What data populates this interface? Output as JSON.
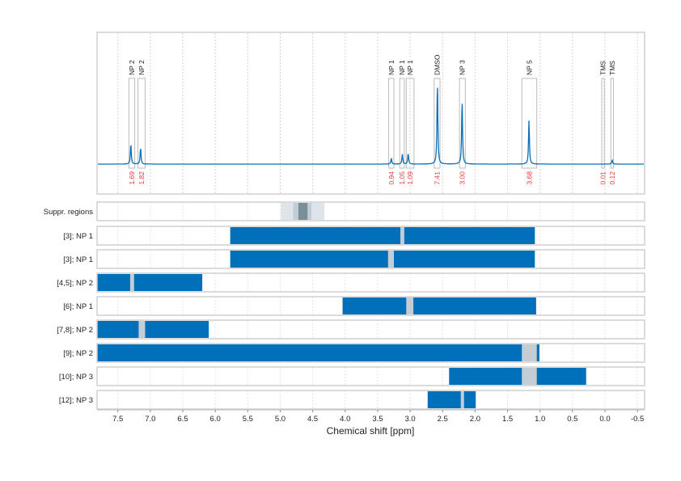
{
  "chart_data": {
    "type": "line",
    "xlabel": "Chemical shift [ppm]",
    "xlim": [
      7.82,
      -0.61
    ],
    "x_reversed": true,
    "x_ticks": [
      7.5,
      7.0,
      6.5,
      6.0,
      5.5,
      5.0,
      4.5,
      4.0,
      3.5,
      3.0,
      2.5,
      2.0,
      1.5,
      1.0,
      0.5,
      0.0,
      -0.5
    ],
    "x_tick_labels": [
      "7.5",
      "7.0",
      "6.5",
      "6.0",
      "5.5",
      "5.0",
      "4.5",
      "4.0",
      "3.5",
      "3.0",
      "2.5",
      "2.0",
      "1.5",
      "1.0",
      "0.5",
      "0.0",
      "-0.5"
    ],
    "grid": true,
    "colors": {
      "spectrum": "#0a6fb8",
      "region": "#0070bb",
      "gap": "#c3cdd3",
      "integral": "#e8383d",
      "box": "#bbbbbb"
    },
    "peaks": [
      {
        "label": "NP 2",
        "integral": "1.69",
        "range": [
          7.33,
          7.24
        ],
        "ppm": 7.3,
        "intensity": 0.25
      },
      {
        "label": "NP 2",
        "integral": "1.82",
        "range": [
          7.19,
          7.08
        ],
        "ppm": 7.15,
        "intensity": 0.2
      },
      {
        "label": "NP 1",
        "integral": "0.94",
        "range": [
          3.33,
          3.25
        ],
        "ppm": 3.29,
        "intensity": 0.07
      },
      {
        "label": "NP 1",
        "integral": "1.05",
        "range": [
          3.16,
          3.09
        ],
        "ppm": 3.12,
        "intensity": 0.12
      },
      {
        "label": "NP 1",
        "integral": "1.09",
        "range": [
          3.06,
          2.94
        ],
        "ppm": 3.03,
        "intensity": 0.13
      },
      {
        "label": "DMSO",
        "integral": "7.41",
        "range": [
          2.63,
          2.54
        ],
        "ppm": 2.58,
        "intensity": 1.0
      },
      {
        "label": "NP 3",
        "integral": "3.00",
        "range": [
          2.24,
          2.15
        ],
        "ppm": 2.2,
        "intensity": 0.78
      },
      {
        "label": "NP 5",
        "integral": "3.68",
        "range": [
          1.28,
          1.05
        ],
        "ppm": 1.17,
        "intensity": 0.53
      },
      {
        "label": "TMS",
        "integral": "0.01",
        "range": [
          0.05,
          0.01
        ],
        "ppm": 0.03,
        "intensity": 0.0
      },
      {
        "label": "TMS",
        "integral": "0.12",
        "range": [
          -0.09,
          -0.13
        ],
        "ppm": -0.11,
        "intensity": 0.05
      }
    ],
    "suppression": {
      "label": "Suppr. regions",
      "bands": [
        [
          4.99,
          4.32
        ],
        [
          4.8,
          4.52
        ],
        [
          4.72,
          4.58
        ]
      ],
      "colors": [
        "#dde4ea",
        "#c2ccd4",
        "#7a8e99"
      ]
    },
    "rows": [
      {
        "label": "[3]; NP 1",
        "span": [
          5.77,
          1.08
        ],
        "gap": [
          3.15,
          3.09
        ]
      },
      {
        "label": "[3]; NP 1",
        "span": [
          5.77,
          1.08
        ],
        "gap": [
          3.34,
          3.25
        ]
      },
      {
        "label": "[4,5]; NP 2",
        "span": [
          7.82,
          6.2
        ],
        "gap": [
          7.31,
          7.25
        ]
      },
      {
        "label": "[6]; NP 1",
        "span": [
          4.04,
          1.06
        ],
        "gap": [
          3.06,
          2.95
        ]
      },
      {
        "label": "[7,8]; NP 2",
        "span": [
          7.82,
          6.1
        ],
        "gap": [
          7.18,
          7.08
        ]
      },
      {
        "label": "[9]; NP 2",
        "span": [
          7.82,
          1.01
        ],
        "gap": [
          1.28,
          1.05
        ]
      },
      {
        "label": "[10]; NP 3",
        "span": [
          2.4,
          0.29
        ],
        "gap": [
          1.28,
          1.05
        ]
      },
      {
        "label": "[12]; NP 3",
        "span": [
          2.73,
          1.99
        ],
        "gap": [
          2.22,
          2.17
        ]
      }
    ]
  }
}
